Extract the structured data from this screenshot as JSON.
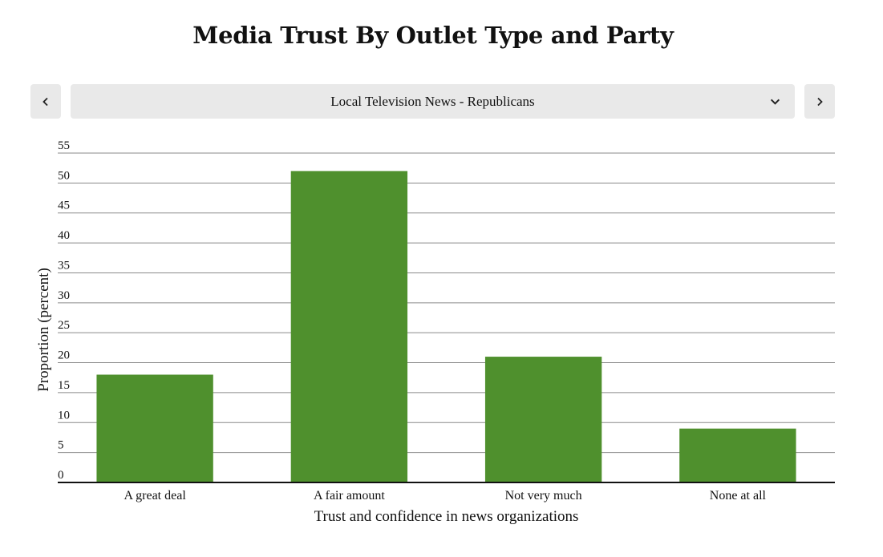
{
  "page": {
    "title": "Media Trust By Outlet Type and Party"
  },
  "nav": {
    "prev_icon": "chevron-left-icon",
    "next_icon": "chevron-right-icon",
    "selector": {
      "selected": "Local Television News - Republicans",
      "icon": "chevron-down-icon"
    },
    "background": "#e9e9e9"
  },
  "chart_data": {
    "type": "bar",
    "title": "",
    "xlabel": "Trust and confidence in news organizations",
    "ylabel": "Proportion (percent)",
    "categories": [
      "A great deal",
      "A fair amount",
      "Not very much",
      "None at all"
    ],
    "series": [
      {
        "values": [
          18,
          52,
          21,
          9
        ]
      }
    ],
    "ylim": [
      0,
      55
    ],
    "yticks": [
      0,
      5,
      10,
      15,
      20,
      25,
      30,
      35,
      40,
      45,
      50,
      55
    ],
    "grid": true,
    "legend": "none",
    "bar_color": "#4f902d"
  }
}
